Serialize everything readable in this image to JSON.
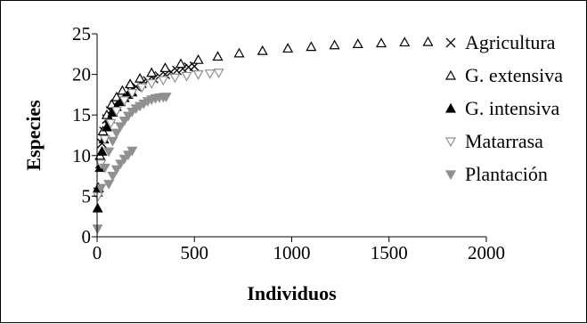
{
  "chart_data": {
    "type": "scatter",
    "title": "",
    "xlabel": "Individuos",
    "ylabel": "Especies",
    "xlim": [
      0,
      2000
    ],
    "ylim": [
      0,
      25
    ],
    "xticks": [
      0,
      500,
      1000,
      1500,
      2000
    ],
    "yticks": [
      0,
      5,
      10,
      15,
      20,
      25
    ],
    "grid": false,
    "legend_position": "right",
    "series": [
      {
        "name": "Agricultura",
        "marker": "x",
        "color": "#000000",
        "x": [
          5,
          15,
          25,
          35,
          50,
          70,
          90,
          110,
          140,
          170,
          200,
          230,
          260,
          290,
          320,
          350,
          380,
          410,
          440,
          470,
          500
        ],
        "y": [
          5.5,
          9,
          11.5,
          13,
          14.5,
          15.5,
          16.2,
          16.8,
          17.5,
          18,
          18.5,
          18.9,
          19.2,
          19.5,
          19.8,
          20,
          20.3,
          20.5,
          20.7,
          20.9,
          21
        ]
      },
      {
        "name": "G. extensiva",
        "marker": "triangle-up-open",
        "color": "#000000",
        "x": [
          5,
          15,
          30,
          50,
          75,
          100,
          130,
          170,
          220,
          280,
          350,
          430,
          520,
          620,
          730,
          850,
          980,
          1100,
          1220,
          1340,
          1460,
          1580,
          1700
        ],
        "y": [
          6,
          10,
          13,
          15,
          16.3,
          17.2,
          18,
          18.8,
          19.5,
          20.2,
          20.8,
          21.3,
          21.8,
          22.2,
          22.6,
          22.9,
          23.2,
          23.4,
          23.6,
          23.75,
          23.85,
          23.95,
          24
        ]
      },
      {
        "name": "G. intensiva",
        "marker": "triangle-up-filled",
        "color": "#000000",
        "x": [
          3,
          8,
          15,
          25,
          35,
          50,
          65,
          80,
          100,
          120,
          140,
          160,
          180
        ],
        "y": [
          3.5,
          6,
          8.5,
          10.5,
          12,
          13.5,
          14.5,
          15.3,
          16,
          16.6,
          17.1,
          17.5,
          17.8
        ]
      },
      {
        "name": "Matarrasa",
        "marker": "triangle-down-open",
        "color": "#909090",
        "x": [
          5,
          20,
          40,
          70,
          100,
          140,
          180,
          230,
          280,
          340,
          400,
          460,
          520,
          580,
          625
        ],
        "y": [
          5,
          9,
          12,
          14,
          15.5,
          16.8,
          17.7,
          18.4,
          18.9,
          19.3,
          19.6,
          19.8,
          20,
          20.1,
          20.2
        ]
      },
      {
        "name": "Plantación",
        "marker": "triangle-down-filled",
        "color": "#909090",
        "x": [
          2,
          20,
          40,
          60,
          80,
          100,
          120,
          140,
          160,
          180,
          200,
          220,
          240,
          260,
          280,
          300,
          320,
          340,
          355,
          60,
          80,
          100,
          120,
          140,
          160,
          180
        ],
        "y": [
          1,
          6,
          8.5,
          10.5,
          11.8,
          12.8,
          13.6,
          14.3,
          14.9,
          15.4,
          15.8,
          16.1,
          16.4,
          16.7,
          16.9,
          17.05,
          17.15,
          17.2,
          17.25,
          6.5,
          7.5,
          8.3,
          9,
          9.6,
          10.1,
          10.6
        ]
      }
    ]
  }
}
